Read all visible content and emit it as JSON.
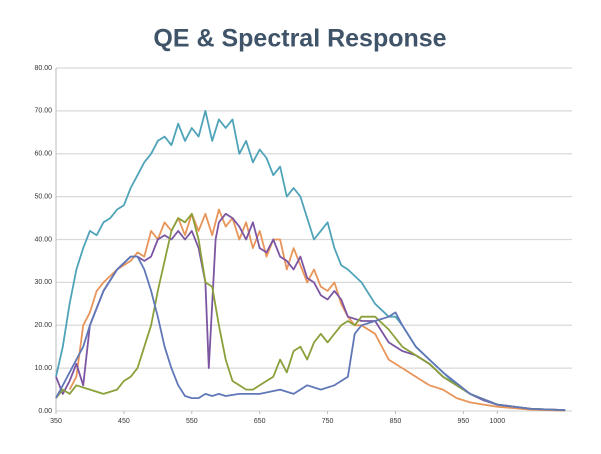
{
  "chart_data": {
    "type": "line",
    "title": "QE & Spectral Response",
    "xlim": [
      350,
      1110
    ],
    "xticks": [
      350,
      450,
      550,
      650,
      750,
      850,
      950,
      1000
    ],
    "ylim": [
      0,
      80
    ],
    "yticks": [
      {
        "value": 0,
        "label": "0.00"
      },
      {
        "value": 10,
        "label": "10.00"
      },
      {
        "value": 20,
        "label": "20.00"
      },
      {
        "value": 30,
        "label": "30.00"
      },
      {
        "value": 40,
        "label": "40.00"
      },
      {
        "value": 50,
        "label": "50.00"
      },
      {
        "value": 60,
        "label": "60.00"
      },
      {
        "value": 70,
        "label": "70.00"
      },
      {
        "value": 80,
        "label": "80.00"
      }
    ],
    "grid": true,
    "series": [
      {
        "color": "#4fa3b8",
        "x": [
          350,
          360,
          370,
          380,
          390,
          400,
          410,
          420,
          430,
          440,
          450,
          460,
          470,
          480,
          490,
          500,
          510,
          520,
          530,
          540,
          550,
          560,
          570,
          580,
          590,
          600,
          610,
          620,
          630,
          640,
          650,
          660,
          670,
          680,
          690,
          700,
          710,
          720,
          730,
          740,
          750,
          760,
          770,
          780,
          800,
          820,
          840,
          850,
          860,
          880,
          900,
          920,
          940,
          960,
          980,
          1000,
          1020,
          1050,
          1100
        ],
        "values": [
          8,
          15,
          25,
          33,
          38,
          42,
          41,
          44,
          45,
          47,
          48,
          52,
          55,
          58,
          60,
          63,
          64,
          62,
          67,
          63,
          66,
          64,
          70,
          63,
          68,
          66,
          68,
          60,
          63,
          58,
          61,
          59,
          55,
          57,
          50,
          52,
          50,
          45,
          40,
          42,
          44,
          38,
          34,
          33,
          30,
          25,
          22,
          22,
          20,
          15,
          12,
          9,
          6,
          4,
          2.5,
          1.5,
          1,
          0.5,
          0.2
        ]
      },
      {
        "color": "#e8955a",
        "x": [
          370,
          380,
          390,
          400,
          410,
          420,
          440,
          460,
          470,
          480,
          490,
          500,
          510,
          520,
          530,
          540,
          550,
          560,
          570,
          580,
          590,
          600,
          610,
          620,
          630,
          640,
          650,
          660,
          670,
          680,
          690,
          700,
          710,
          720,
          730,
          740,
          750,
          760,
          770,
          780,
          790,
          800,
          820,
          840,
          860,
          880,
          900,
          920,
          940,
          960,
          980,
          1000,
          1050,
          1100
        ],
        "values": [
          5,
          8,
          20,
          23,
          28,
          30,
          33,
          35,
          37,
          36,
          42,
          40,
          44,
          42,
          45,
          41,
          46,
          42,
          46,
          41,
          47,
          43,
          45,
          40,
          44,
          38,
          42,
          36,
          40,
          40,
          33,
          38,
          34,
          30,
          33,
          29,
          28,
          30,
          25,
          22,
          20,
          20,
          18,
          12,
          10,
          8,
          6,
          5,
          3,
          2,
          1.5,
          1,
          0.3,
          0.1
        ]
      },
      {
        "color": "#7c55a3",
        "x": [
          350,
          360,
          370,
          380,
          390,
          400,
          410,
          420,
          440,
          460,
          470,
          480,
          490,
          500,
          510,
          520,
          530,
          540,
          550,
          560,
          570,
          575,
          580,
          585,
          590,
          600,
          610,
          620,
          630,
          640,
          650,
          660,
          670,
          680,
          690,
          700,
          710,
          720,
          730,
          740,
          750,
          760,
          770,
          780,
          800,
          820,
          840,
          860,
          880,
          900,
          920,
          940,
          960,
          980,
          1000,
          1050,
          1100
        ],
        "values": [
          8,
          4,
          7,
          11,
          6,
          20,
          24,
          28,
          33,
          36,
          36,
          35,
          36,
          40,
          41,
          40,
          42,
          40,
          42,
          38,
          30,
          10,
          25,
          40,
          44,
          46,
          45,
          43,
          40,
          44,
          38,
          37,
          40,
          36,
          35,
          33,
          36,
          31,
          30,
          27,
          26,
          28,
          26,
          22,
          21,
          21,
          16,
          14,
          13,
          11,
          8,
          6,
          4,
          2.5,
          1.5,
          0.5,
          0.2
        ]
      },
      {
        "color": "#8aa03a",
        "x": [
          350,
          360,
          370,
          380,
          400,
          420,
          440,
          450,
          460,
          470,
          480,
          490,
          500,
          510,
          520,
          530,
          540,
          550,
          560,
          570,
          580,
          590,
          600,
          610,
          620,
          630,
          640,
          650,
          660,
          670,
          680,
          690,
          700,
          710,
          720,
          730,
          740,
          750,
          760,
          770,
          780,
          790,
          800,
          820,
          840,
          860,
          880,
          900,
          920,
          960,
          1000,
          1050,
          1100
        ],
        "values": [
          3,
          5,
          4,
          6,
          5,
          4,
          5,
          7,
          8,
          10,
          15,
          20,
          28,
          35,
          42,
          45,
          44,
          46,
          40,
          30,
          29,
          20,
          12,
          7,
          6,
          5,
          5,
          6,
          7,
          8,
          12,
          9,
          14,
          15,
          12,
          16,
          18,
          16,
          18,
          20,
          21,
          20,
          22,
          22,
          19,
          15,
          13,
          11,
          8,
          4,
          1.5,
          0.5,
          0.2
        ]
      },
      {
        "color": "#6077b8",
        "x": [
          350,
          360,
          370,
          380,
          390,
          400,
          420,
          440,
          460,
          470,
          480,
          490,
          500,
          510,
          520,
          530,
          540,
          550,
          560,
          570,
          580,
          590,
          600,
          620,
          650,
          680,
          700,
          720,
          740,
          760,
          780,
          790,
          800,
          820,
          840,
          850,
          860,
          880,
          900,
          920,
          960,
          1000,
          1050,
          1100
        ],
        "values": [
          3,
          6,
          9,
          12,
          15,
          20,
          28,
          33,
          36,
          36,
          33,
          28,
          22,
          15,
          10,
          6,
          3.5,
          3,
          3,
          4,
          3.5,
          4,
          3.5,
          4,
          4,
          5,
          4,
          6,
          5,
          6,
          8,
          18,
          20,
          21,
          22,
          23,
          20,
          15,
          12,
          9,
          4,
          1.5,
          0.5,
          0.2
        ]
      }
    ]
  }
}
